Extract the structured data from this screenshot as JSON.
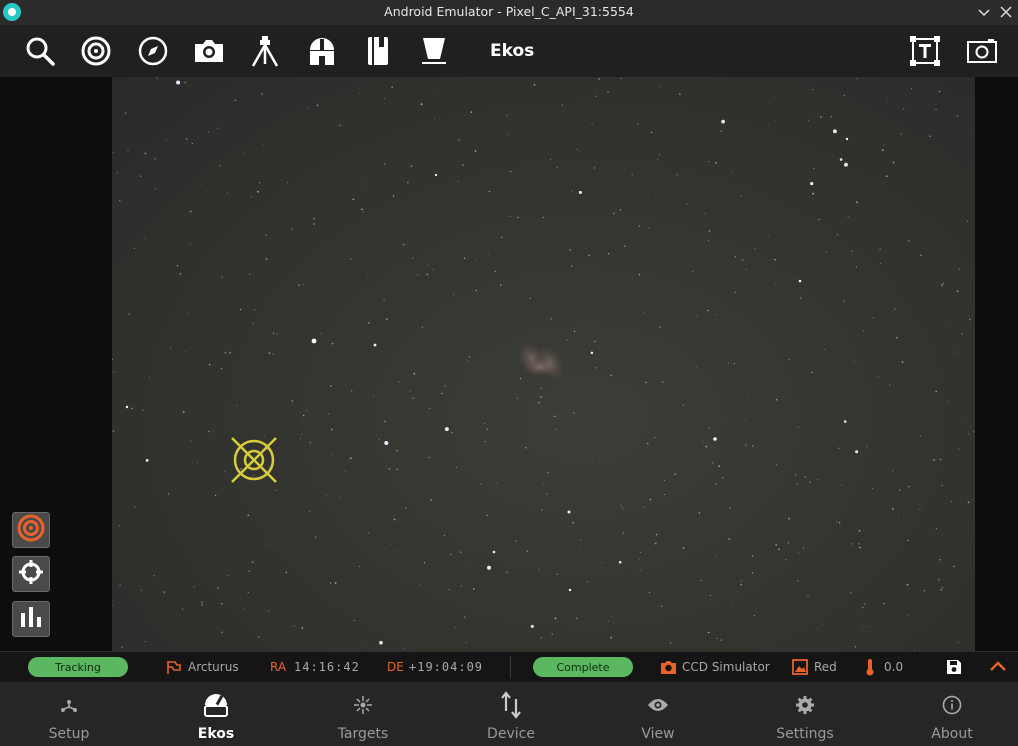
{
  "window": {
    "title": "Android Emulator - Pixel_C_API_31:5554"
  },
  "toolbar": {
    "title": "Ekos",
    "icons": [
      "search-icon",
      "target-icon",
      "compass-icon",
      "camera-icon",
      "tripod-icon",
      "observatory-icon",
      "book-icon",
      "flat-panel-icon",
      "text-overlay-icon",
      "screenshot-icon"
    ]
  },
  "status": {
    "mount_state": "Tracking",
    "target_name": "Arcturus",
    "ra_label": "RA",
    "ra_value": "14:16:42",
    "de_label": "DE",
    "de_value": "+19:04:09",
    "capture_state": "Complete",
    "camera_name": "CCD Simulator",
    "filter_name": "Red",
    "temperature": "0.0"
  },
  "nav": [
    {
      "label": "Setup",
      "icon": "setup-icon"
    },
    {
      "label": "Ekos",
      "icon": "ekos-dome-icon",
      "active": true
    },
    {
      "label": "Targets",
      "icon": "targets-icon"
    },
    {
      "label": "Device",
      "icon": "device-arrows-icon"
    },
    {
      "label": "View",
      "icon": "eye-icon"
    },
    {
      "label": "Settings",
      "icon": "gear-icon"
    },
    {
      "label": "About",
      "icon": "info-icon"
    }
  ],
  "colors": {
    "accent": "#e8622a",
    "status_green": "#5cb860",
    "crosshair": "#d8cc3c"
  }
}
